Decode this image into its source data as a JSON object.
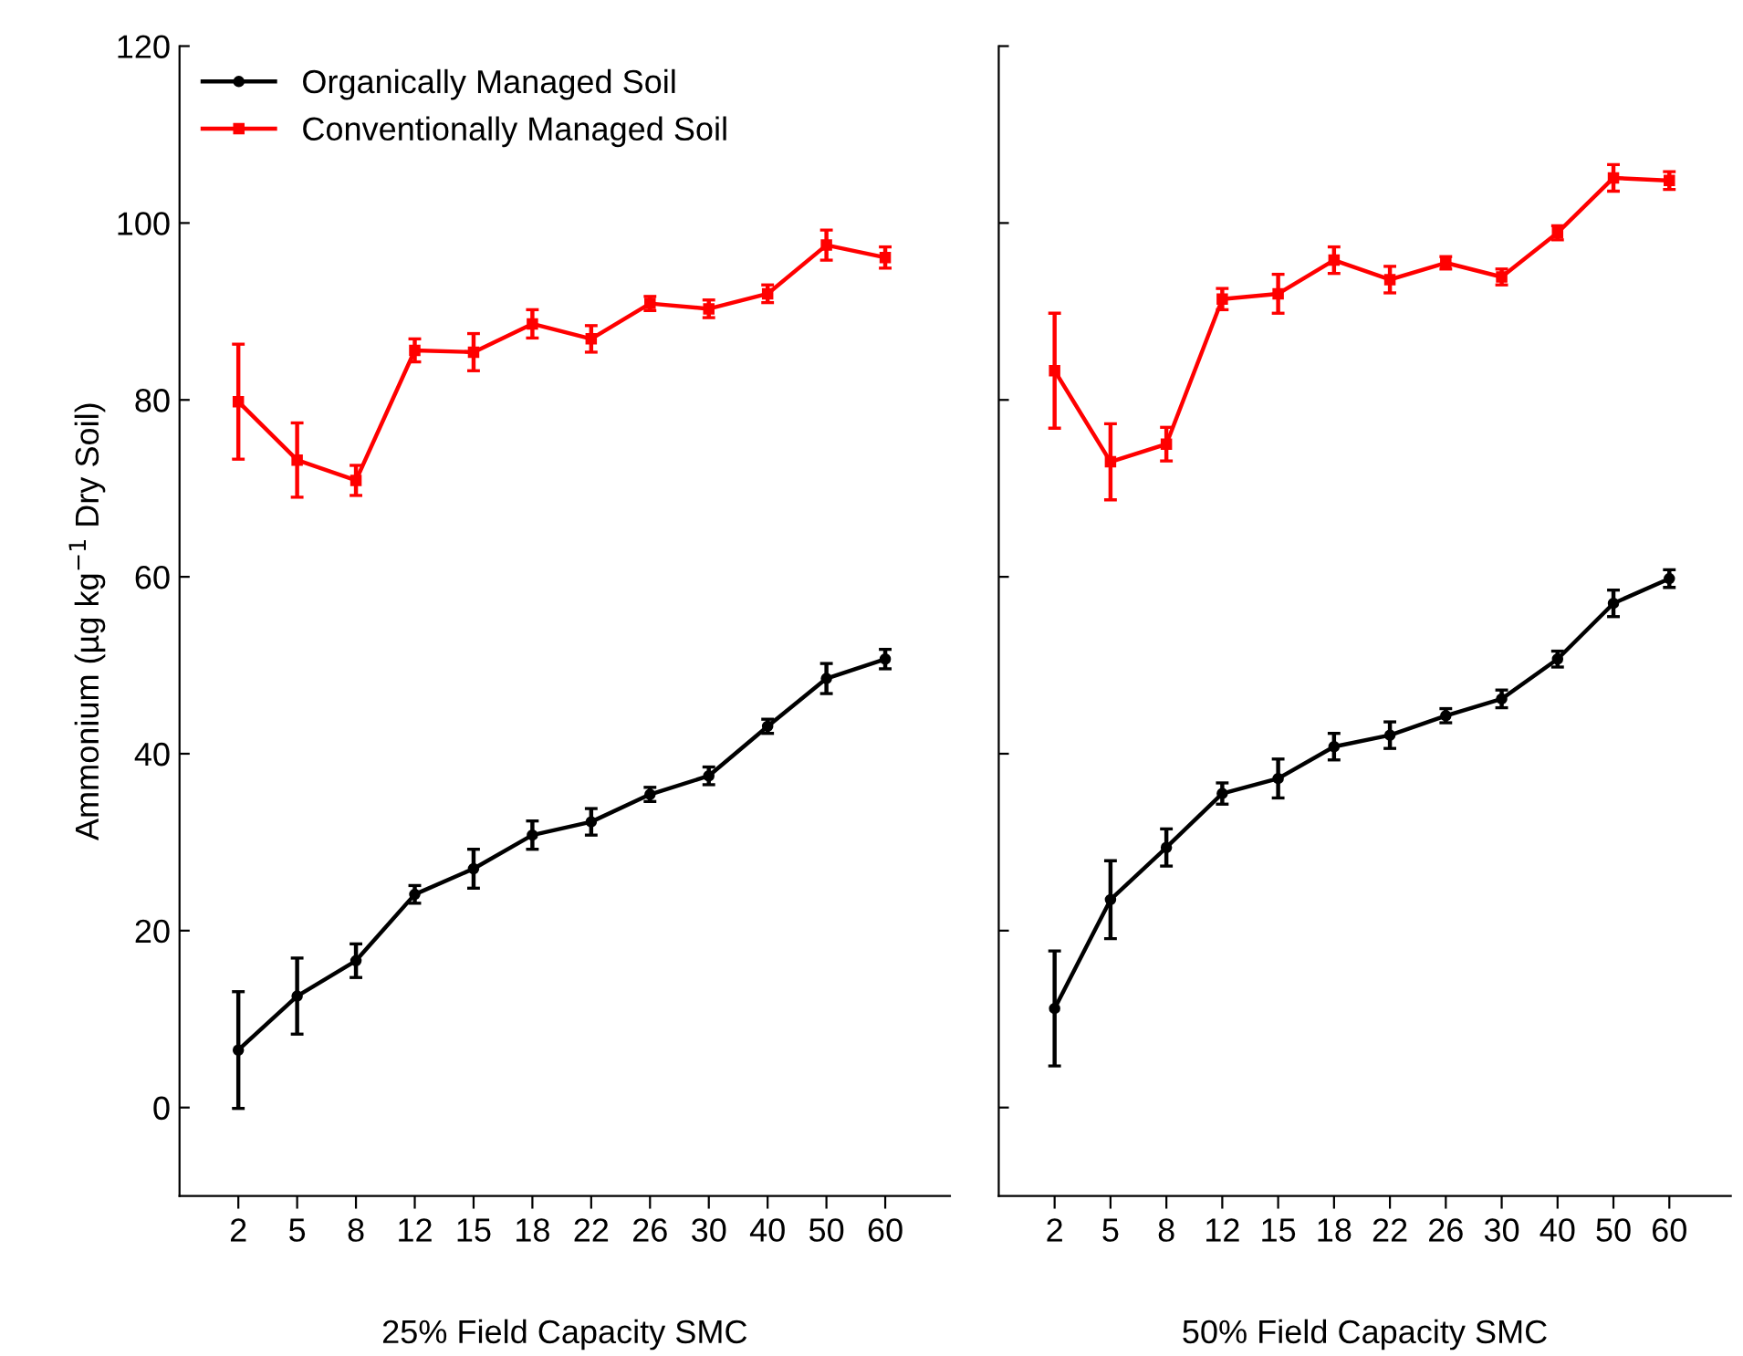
{
  "chart_data": [
    {
      "type": "line",
      "xlabel": "25% Field Capacity SMC",
      "ylabel": "Ammonium (µg kg$^{−1}$ Dry Soil)",
      "categories": [
        "2",
        "5",
        "8",
        "12",
        "15",
        "18",
        "22",
        "26",
        "30",
        "40",
        "50",
        "60"
      ],
      "ylim": [
        -10,
        120
      ],
      "yticks": [
        0,
        20,
        40,
        60,
        80,
        100,
        120
      ],
      "legend": "top left",
      "grid": false,
      "series": [
        {
          "name": "Organically Managed Soil",
          "color": "#000000",
          "marker": "circle",
          "values": [
            6.5,
            12.6,
            16.6,
            24.1,
            27.0,
            30.8,
            32.3,
            35.4,
            37.5,
            43.1,
            48.5,
            50.7
          ],
          "errors": [
            6.6,
            4.3,
            1.9,
            1.0,
            2.2,
            1.6,
            1.5,
            0.8,
            1.0,
            0.8,
            1.7,
            1.1
          ]
        },
        {
          "name": "Conventionally Managed Soil",
          "color": "#ff0000",
          "marker": "square",
          "values": [
            79.8,
            73.2,
            70.9,
            85.6,
            85.4,
            88.6,
            86.9,
            90.9,
            90.3,
            92.0,
            97.5,
            96.1
          ],
          "errors": [
            6.5,
            4.2,
            1.7,
            1.3,
            2.1,
            1.6,
            1.5,
            0.8,
            1.0,
            1.0,
            1.7,
            1.2
          ]
        }
      ]
    },
    {
      "type": "line",
      "xlabel": "50% Field Capacity SMC",
      "categories": [
        "2",
        "5",
        "8",
        "12",
        "15",
        "18",
        "22",
        "26",
        "30",
        "40",
        "50",
        "60"
      ],
      "ylim": [
        -10,
        120
      ],
      "yticks": [
        0,
        20,
        40,
        60,
        80,
        100,
        120
      ],
      "tick_labels": "x",
      "grid": false,
      "series": [
        {
          "color": "#000000",
          "marker": "circle",
          "values": [
            11.2,
            23.5,
            29.4,
            35.5,
            37.2,
            40.8,
            42.1,
            44.3,
            46.2,
            50.7,
            57.0,
            59.8
          ],
          "errors": [
            6.5,
            4.4,
            2.1,
            1.2,
            2.2,
            1.5,
            1.5,
            0.8,
            1.0,
            0.9,
            1.5,
            1.0
          ]
        },
        {
          "color": "#ff0000",
          "marker": "square",
          "values": [
            83.3,
            73.0,
            75.0,
            91.4,
            92.0,
            95.8,
            93.6,
            95.5,
            93.9,
            98.9,
            105.1,
            104.8
          ],
          "errors": [
            6.5,
            4.3,
            1.9,
            1.2,
            2.2,
            1.5,
            1.5,
            0.7,
            0.9,
            0.8,
            1.5,
            1.0
          ]
        }
      ]
    }
  ]
}
